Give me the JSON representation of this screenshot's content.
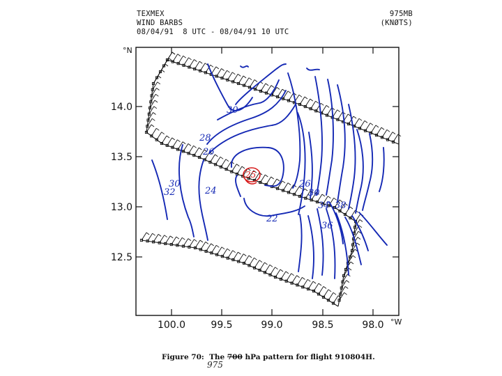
{
  "header": {
    "title_lines": [
      "TEXMEX",
      "WIND BARBS",
      "08/04/91  8 UTC - 08/04/91 10 UTC"
    ],
    "level": "975MB",
    "units": "(KNØTS)"
  },
  "axes": {
    "y_labels": [
      "14.0",
      "13.5",
      "13.0",
      "12.5"
    ],
    "x_labels": [
      "100.0",
      "99.5",
      "99.0",
      "98.5",
      "98.0"
    ],
    "y_unit": "°N",
    "x_unit": "°W"
  },
  "contour_labels": {
    "blue": [
      "30",
      "28",
      "26",
      "30",
      "32",
      "24",
      "26",
      "30",
      "22",
      "34",
      "38",
      "36"
    ],
    "red": [
      "25"
    ]
  },
  "caption": {
    "prefix": "Figure 70:  The ",
    "struck": "700",
    "suffix": " hPa pattern for flight 910804H.",
    "handwritten": "975"
  },
  "colors": {
    "contour": "#1428b4",
    "highlight": "#d61818",
    "ink": "#111111"
  }
}
